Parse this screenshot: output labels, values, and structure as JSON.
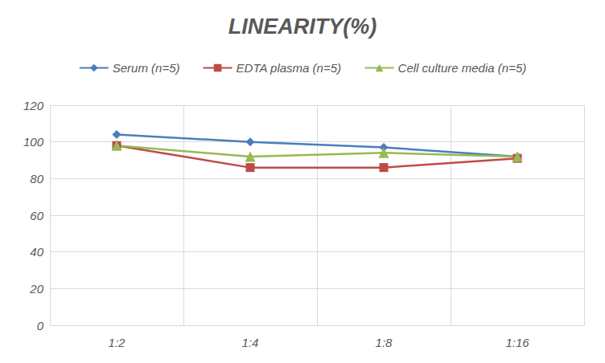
{
  "chart_data": {
    "type": "line",
    "title": "LINEARITY(%)",
    "categories": [
      "1:2",
      "1:4",
      "1:8",
      "1:16"
    ],
    "series": [
      {
        "name": "Serum (n=5)",
        "color": "#4a7ebb",
        "marker": "diamond",
        "values": [
          104,
          100,
          97,
          92
        ]
      },
      {
        "name": "EDTA plasma (n=5)",
        "color": "#be4b48",
        "marker": "square",
        "values": [
          98,
          86,
          86,
          91
        ]
      },
      {
        "name": "Cell culture media (n=5)",
        "color": "#98b954",
        "marker": "triangle",
        "values": [
          98,
          92,
          94,
          92
        ]
      }
    ],
    "ylim": [
      0,
      120
    ],
    "yticks": [
      0,
      20,
      40,
      60,
      80,
      100,
      120
    ],
    "grid": true,
    "legend": "top"
  }
}
